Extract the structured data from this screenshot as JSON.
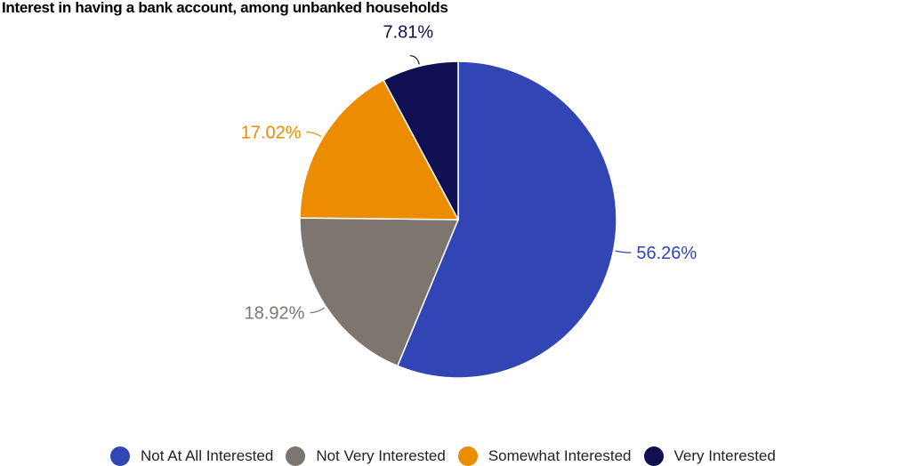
{
  "chart_data": {
    "type": "pie",
    "title": "Interest in having a bank account, among unbanked households",
    "categories": [
      "Not At All Interested",
      "Not Very Interested",
      "Somewhat Interested",
      "Very Interested"
    ],
    "values": [
      56.26,
      18.92,
      17.02,
      7.81
    ],
    "labels": [
      "56.26%",
      "18.92%",
      "17.02%",
      "7.81%"
    ],
    "colors": [
      "#3145b5",
      "#7d766f",
      "#ec8c00",
      "#0f0f52"
    ],
    "start_angle": "12 o'clock, clockwise",
    "legend_position": "bottom"
  },
  "legend": [
    {
      "label": "Not At All Interested",
      "color": "#3145b5"
    },
    {
      "label": "Not Very Interested",
      "color": "#7d766f"
    },
    {
      "label": "Somewhat Interested",
      "color": "#ec8c00"
    },
    {
      "label": "Very Interested",
      "color": "#0f0f52"
    }
  ]
}
